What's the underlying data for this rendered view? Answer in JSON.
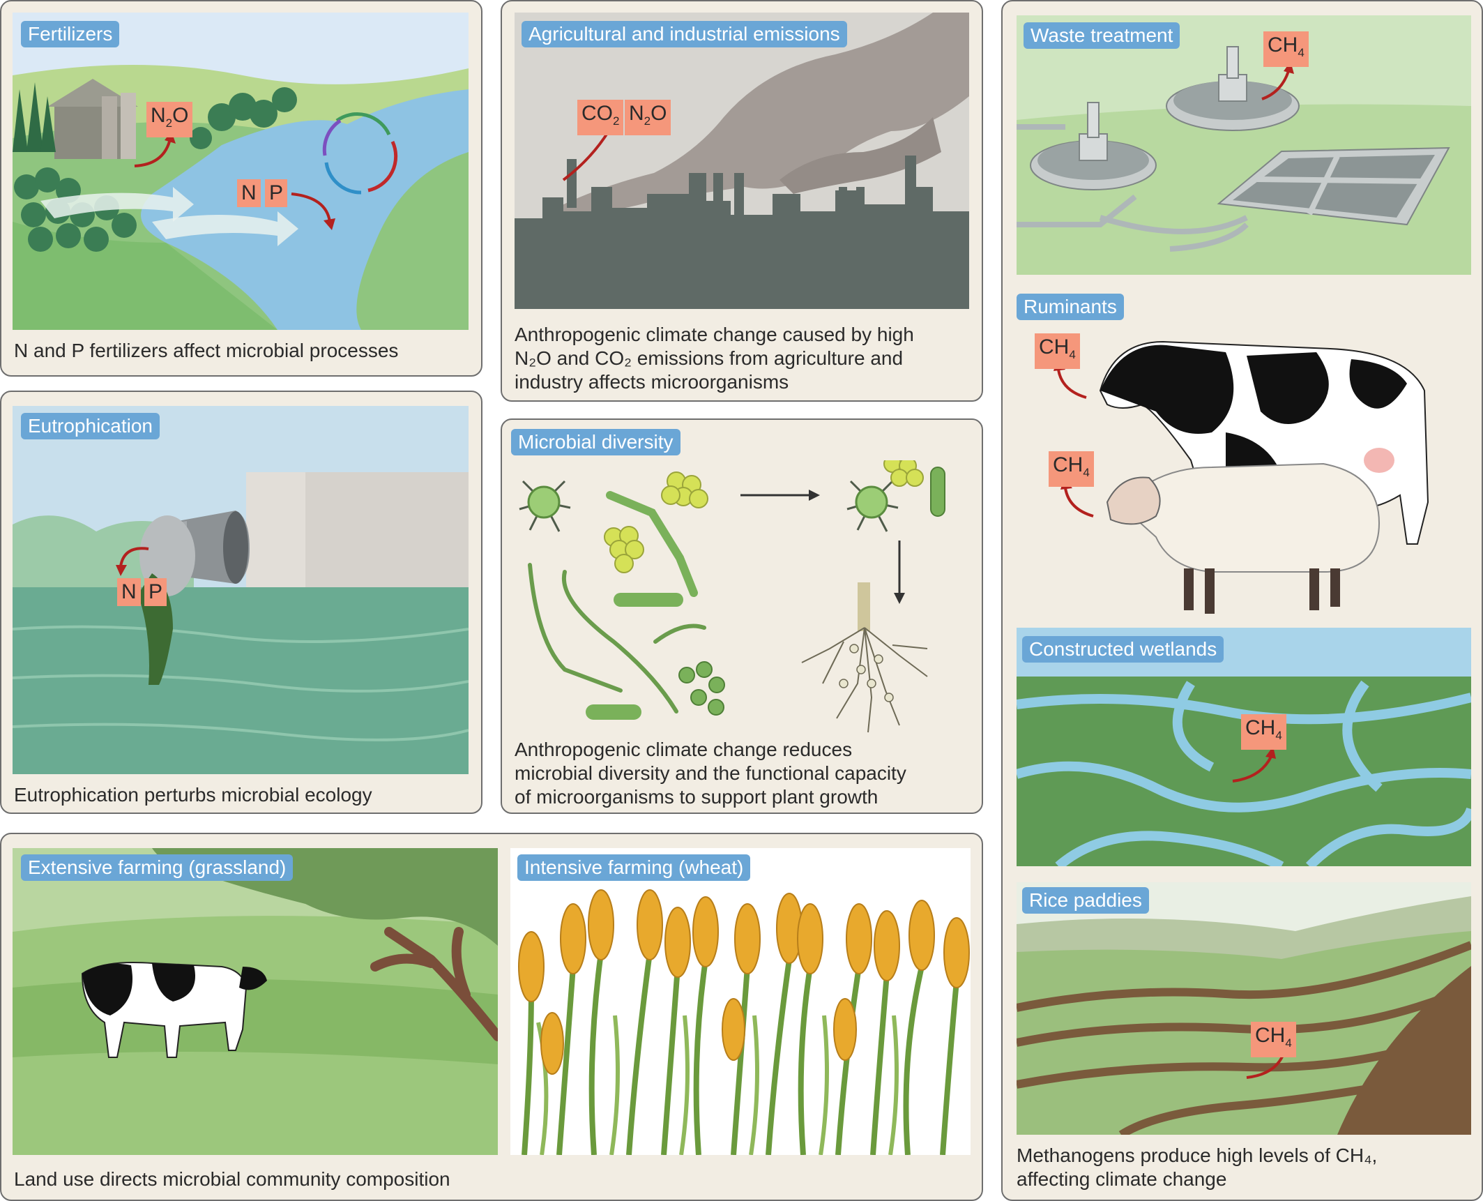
{
  "panels": {
    "fertilizers": {
      "tag": "Fertilizers",
      "caption": "N and P fertilizers affect microbial processes",
      "labels": {
        "n2o_n": "N",
        "n2o_sub": "2",
        "n2o_o": "O",
        "n": "N",
        "p": "P"
      }
    },
    "emissions": {
      "tag": "Agricultural and industrial emissions",
      "caption_lines": [
        "Anthropogenic climate change caused by high",
        "N₂O and CO₂ emissions from agriculture and",
        "industry affects microorganisms"
      ],
      "labels": {
        "co2_c": "CO",
        "co2_sub": "2",
        "n2o_n": "N",
        "n2o_sub": "2",
        "n2o_o": "O"
      }
    },
    "waste": {
      "tag": "Waste treatment",
      "labels": {
        "ch": "CH",
        "sub": "4"
      }
    },
    "ruminants": {
      "tag": "Ruminants",
      "labels": {
        "ch": "CH",
        "sub": "4"
      }
    },
    "eutrophication": {
      "tag": "Eutrophication",
      "caption": "Eutrophication perturbs microbial ecology",
      "labels": {
        "n": "N",
        "p": "P"
      }
    },
    "diversity": {
      "tag": "Microbial diversity",
      "caption_lines": [
        "Anthropogenic climate change reduces",
        "microbial diversity and the functional capacity",
        "of microorganisms to support plant growth"
      ]
    },
    "wetlands": {
      "tag": "Constructed wetlands",
      "labels": {
        "ch": "CH",
        "sub": "4"
      }
    },
    "rice": {
      "tag": "Rice paddies",
      "caption_lines": [
        "Methanogens produce high levels of CH₄,",
        "affecting climate change"
      ],
      "labels": {
        "ch": "CH",
        "sub": "4"
      }
    },
    "land_use": {
      "tag_extensive": "Extensive farming (grassland)",
      "tag_intensive": "Intensive farming (wheat)",
      "caption": "Land use directs microbial community composition"
    }
  },
  "colors": {
    "tag_bg": "#6aa6d6",
    "chem_bg": "#f5977b",
    "arrow": "#b3211e",
    "panel_bg": "#f2ede3",
    "factory": "#5f6a66",
    "smoke": "#a39b96"
  }
}
